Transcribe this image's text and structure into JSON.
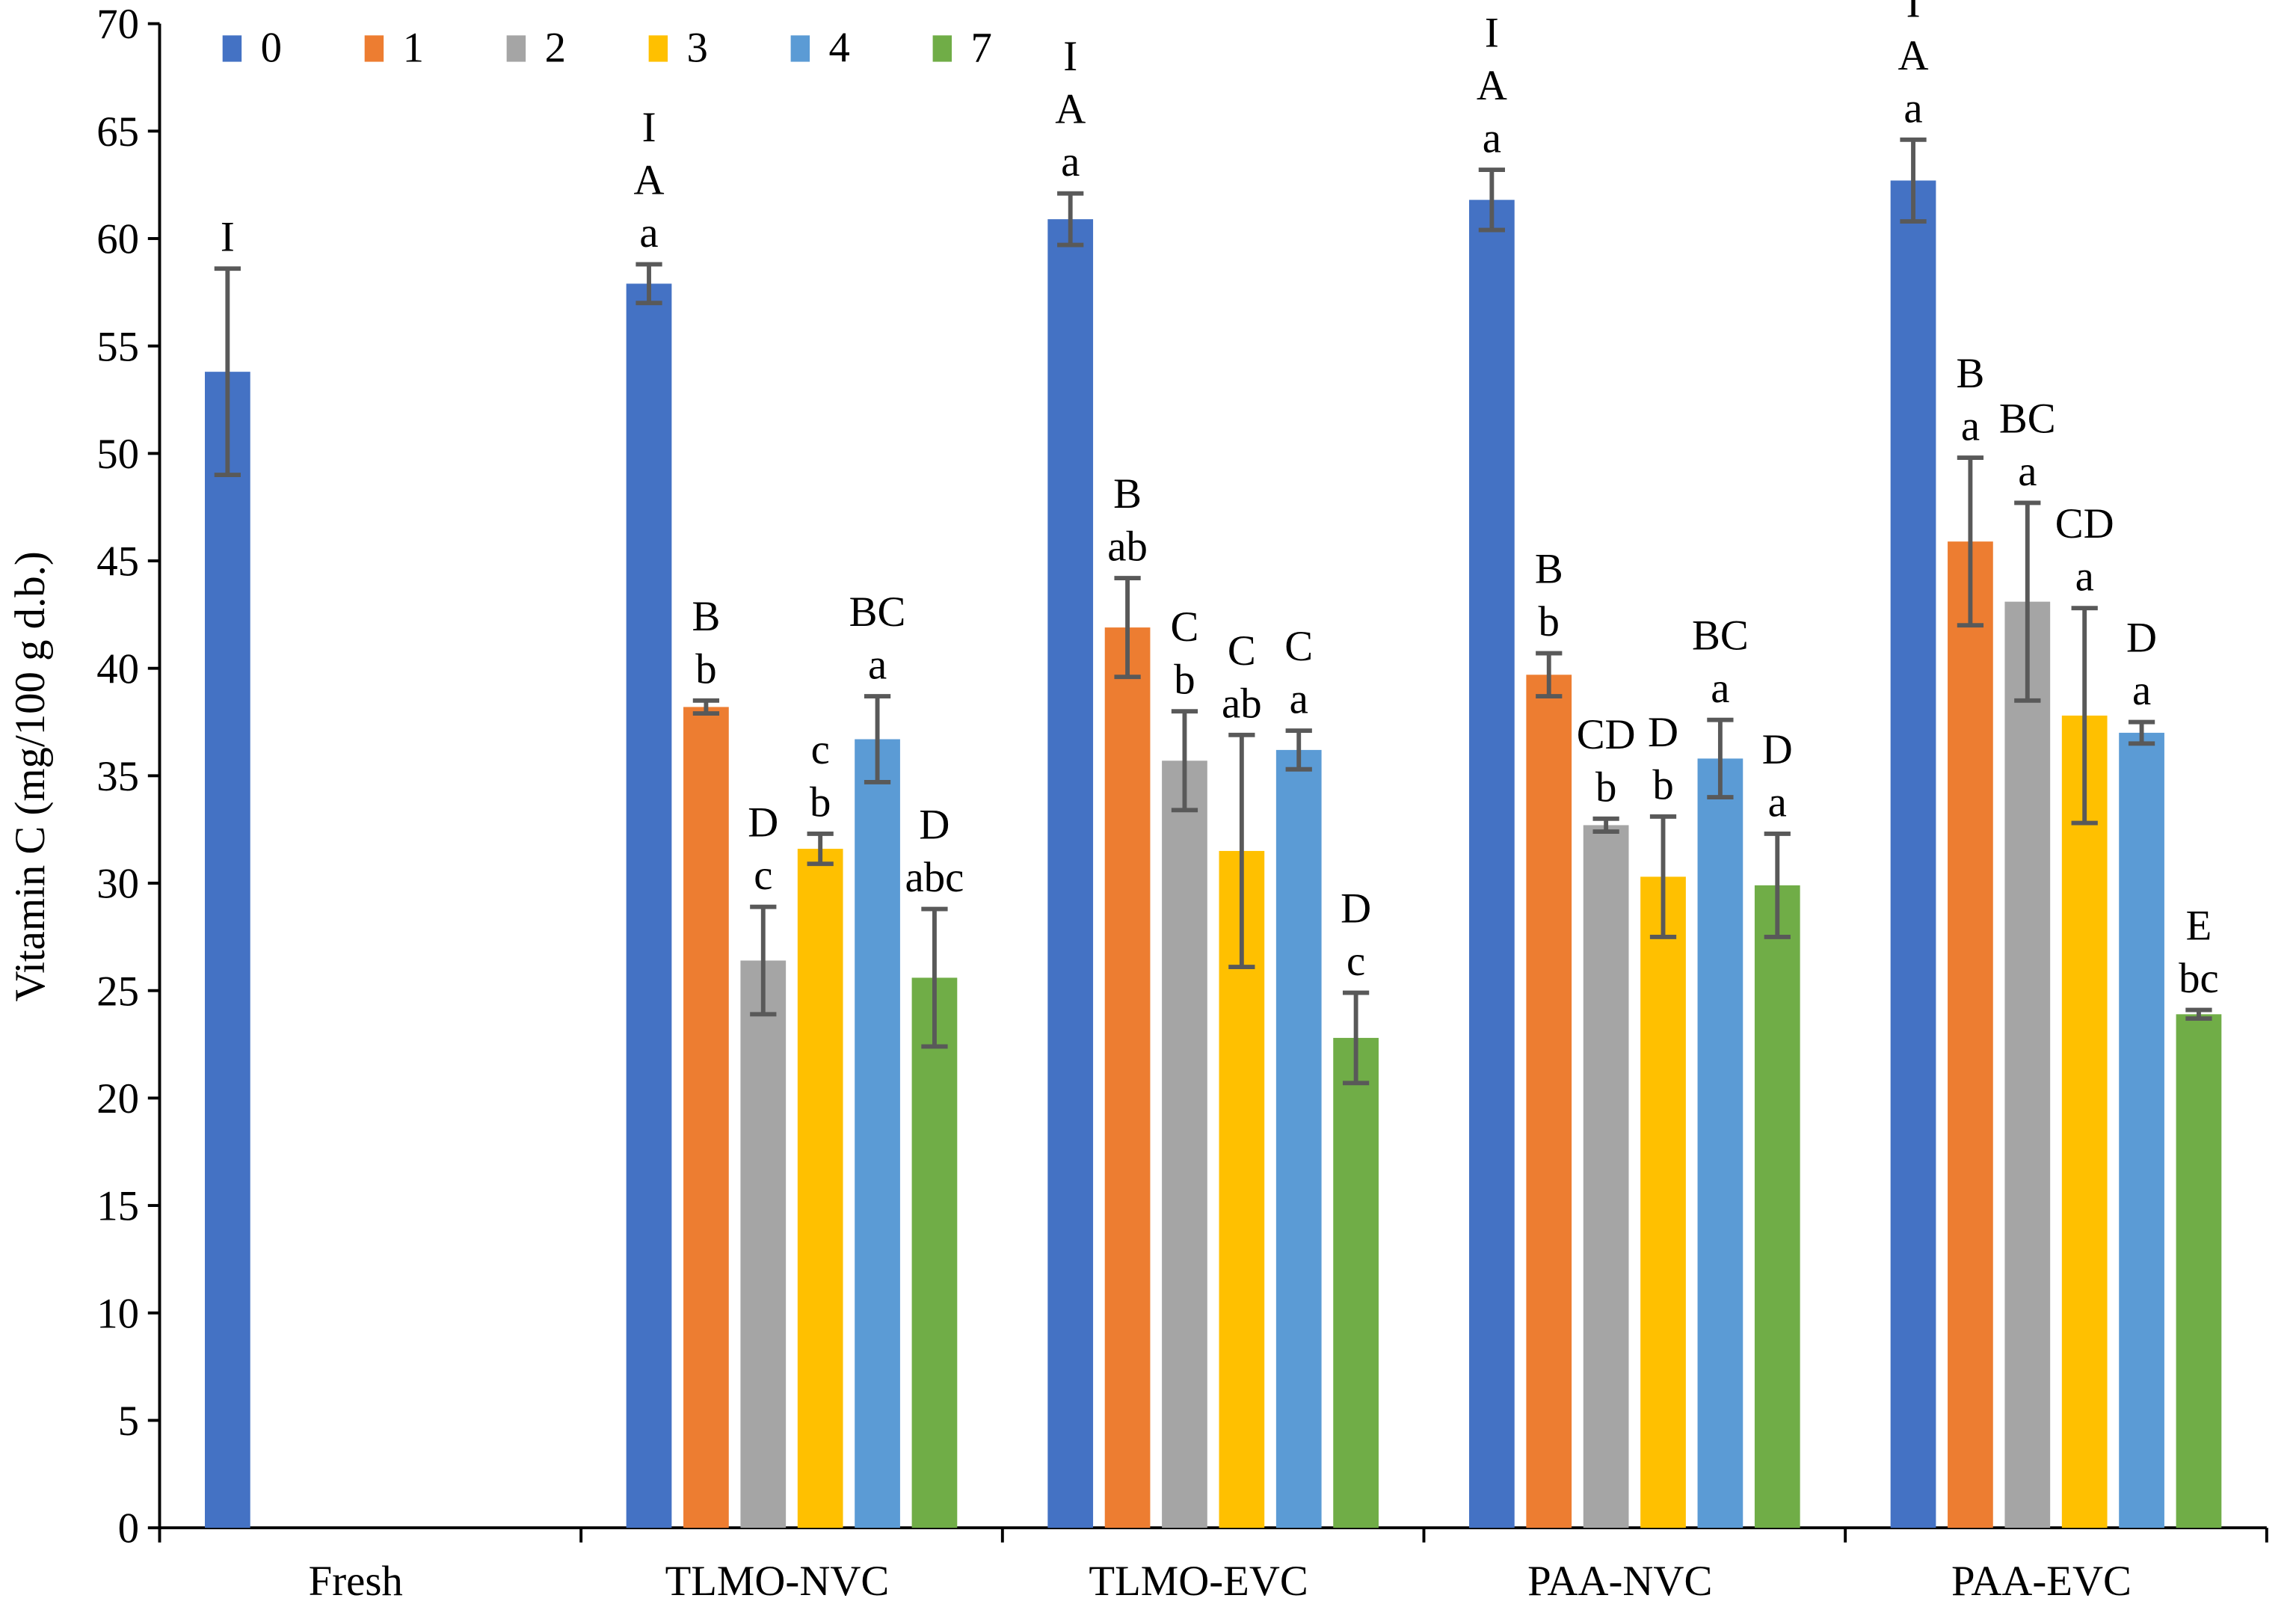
{
  "chart_data": {
    "type": "bar",
    "title": "",
    "xlabel": "",
    "ylabel": "Vitamin C (mg/100 g d.b.)",
    "ylim": [
      0,
      70
    ],
    "yticks": [
      0,
      5,
      10,
      15,
      20,
      25,
      30,
      35,
      40,
      45,
      50,
      55,
      60,
      65,
      70
    ],
    "grid": false,
    "legend_placement": "top",
    "categories": [
      "Fresh",
      "TLMO-NVC",
      "TLMO-EVC",
      "PAA-NVC",
      "PAA-EVC"
    ],
    "series": [
      {
        "name": "0",
        "color": "#4472C4",
        "values": [
          53.8,
          57.9,
          60.9,
          61.8,
          62.7
        ],
        "errors": [
          4.8,
          0.9,
          1.2,
          1.4,
          1.9
        ],
        "labels": [
          [
            "I"
          ],
          [
            "I",
            "A",
            "a"
          ],
          [
            "I",
            "A",
            "a"
          ],
          [
            "I",
            "A",
            "a"
          ],
          [
            "I",
            "A",
            "a"
          ]
        ]
      },
      {
        "name": "1",
        "color": "#ED7D31",
        "values": [
          null,
          38.2,
          41.9,
          39.7,
          45.9
        ],
        "errors": [
          null,
          0.3,
          2.3,
          1.0,
          3.9
        ],
        "labels": [
          [],
          [
            "B",
            "b"
          ],
          [
            "B",
            "ab"
          ],
          [
            "B",
            "b"
          ],
          [
            "B",
            "a"
          ]
        ]
      },
      {
        "name": "2",
        "color": "#A5A5A5",
        "values": [
          null,
          26.4,
          35.7,
          32.7,
          43.1
        ],
        "errors": [
          null,
          2.5,
          2.3,
          0.3,
          4.6
        ],
        "labels": [
          [],
          [
            "D",
            "c"
          ],
          [
            "C",
            "b"
          ],
          [
            "CD",
            "b"
          ],
          [
            "BC",
            "a"
          ]
        ]
      },
      {
        "name": "3",
        "color": "#FFC000",
        "values": [
          null,
          31.6,
          31.5,
          30.3,
          37.8
        ],
        "errors": [
          null,
          0.7,
          5.4,
          2.8,
          5.0
        ],
        "labels": [
          [],
          [
            "c",
            "b"
          ],
          [
            "C",
            "ab"
          ],
          [
            "D",
            "b"
          ],
          [
            "CD",
            "a"
          ]
        ]
      },
      {
        "name": "4",
        "color": "#5B9BD5",
        "values": [
          null,
          36.7,
          36.2,
          35.8,
          37.0
        ],
        "errors": [
          null,
          2.0,
          0.9,
          1.8,
          0.5
        ],
        "labels": [
          [],
          [
            "BC",
            "a"
          ],
          [
            "C",
            "a"
          ],
          [
            "BC",
            "a"
          ],
          [
            "D",
            "a"
          ]
        ]
      },
      {
        "name": "7",
        "color": "#70AD47",
        "values": [
          null,
          25.6,
          22.8,
          29.9,
          23.9
        ],
        "errors": [
          null,
          3.2,
          2.1,
          2.4,
          0.2
        ],
        "labels": [
          [],
          [
            "D",
            "abc"
          ],
          [
            "D",
            "c"
          ],
          [
            "D",
            "a"
          ],
          [
            "E",
            "bc"
          ]
        ]
      }
    ]
  }
}
